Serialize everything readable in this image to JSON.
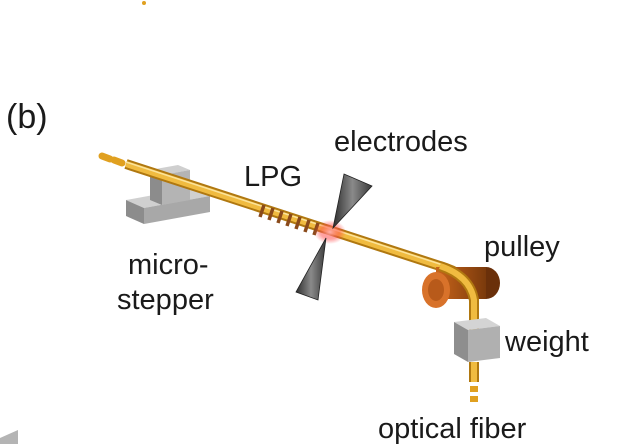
{
  "panel_label": "(b)",
  "labels": {
    "electrodes": "electrodes",
    "lpg": "LPG",
    "pulley": "pulley",
    "micro_stepper_line1": "micro-",
    "micro_stepper_line2": "stepper",
    "weight": "weight",
    "optical_fiber": "optical fiber"
  },
  "colors": {
    "fiber": "#e0a020",
    "fiber_dark": "#b07810",
    "grating": "#8a4a1a",
    "stepper": "#a8a8a8",
    "electrode": "#555555",
    "pulley": "#9a4a10",
    "spark": "#ff3b3b",
    "text": "#1a1a1a"
  }
}
